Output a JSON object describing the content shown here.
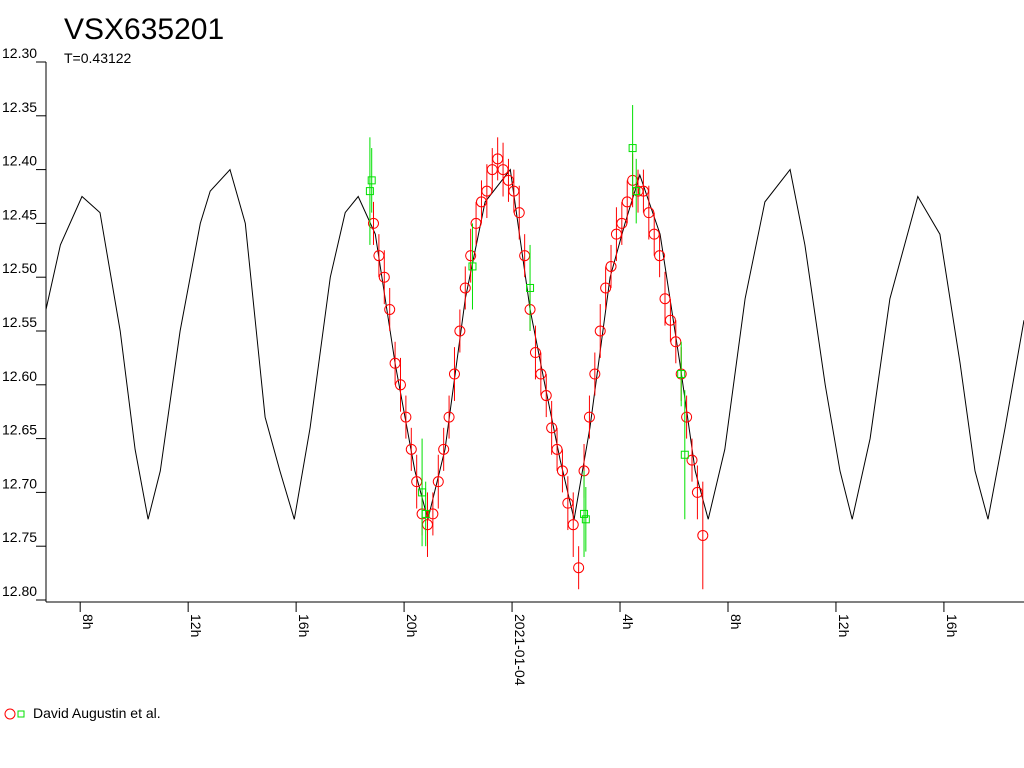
{
  "chart_data": {
    "type": "scatter",
    "title": "VSX635201",
    "subtitle": "T=0.43122",
    "xlim": [
      "2021-01-03 06:44",
      "2021-01-04 18:58"
    ],
    "xticks": [
      {
        "value": "2021-01-03 08:00",
        "label": "8h"
      },
      {
        "value": "2021-01-03 12:00",
        "label": "12h"
      },
      {
        "value": "2021-01-03 16:00",
        "label": "16h"
      },
      {
        "value": "2021-01-03 20:00",
        "label": "20h"
      },
      {
        "value": "2021-01-04 00:00",
        "label": "2021-01-04"
      },
      {
        "value": "2021-01-04 04:00",
        "label": "4h"
      },
      {
        "value": "2021-01-04 08:00",
        "label": "8h"
      },
      {
        "value": "2021-01-04 12:00",
        "label": "12h"
      },
      {
        "value": "2021-01-04 16:00",
        "label": "16h"
      }
    ],
    "ylim": [
      12.3,
      12.8
    ],
    "y_inverted": true,
    "yticks": [
      {
        "value": 12.3,
        "label": "12.30"
      },
      {
        "value": 12.35,
        "label": "12.35"
      },
      {
        "value": 12.4,
        "label": "12.40"
      },
      {
        "value": 12.45,
        "label": "12.45"
      },
      {
        "value": 12.5,
        "label": "12.50"
      },
      {
        "value": 12.55,
        "label": "12.55"
      },
      {
        "value": 12.6,
        "label": "12.60"
      },
      {
        "value": 12.65,
        "label": "12.65"
      },
      {
        "value": 12.7,
        "label": "12.70"
      },
      {
        "value": 12.75,
        "label": "12.75"
      },
      {
        "value": 12.8,
        "label": "12.80"
      }
    ],
    "series": [
      {
        "marker": "line",
        "color": "#000000",
        "x": [
          "2021-01-03 06:44",
          "2021-01-03 07:16",
          "2021-01-03 08:04",
          "2021-01-03 08:44",
          "2021-01-03 09:29",
          "2021-01-03 10:02",
          "2021-01-03 10:31",
          "2021-01-03 10:58",
          "2021-01-03 11:42",
          "2021-01-03 12:27",
          "2021-01-03 12:49",
          "2021-01-03 13:33",
          "2021-01-03 14:07",
          "2021-01-03 14:51",
          "2021-01-03 15:24",
          "2021-01-03 15:56",
          "2021-01-03 16:31",
          "2021-01-03 17:16",
          "2021-01-03 17:49",
          "2021-01-03 18:18",
          "2021-01-03 18:56",
          "2021-01-03 19:40",
          "2021-01-03 20:24",
          "2021-01-03 20:53",
          "2021-01-03 21:31",
          "2021-01-03 22:16",
          "2021-01-03 23:00",
          "2021-01-03 23:56",
          "2021-01-04 00:40",
          "2021-01-04 01:13",
          "2021-01-04 01:47",
          "2021-01-04 02:18",
          "2021-01-04 02:53",
          "2021-01-04 03:38",
          "2021-01-04 04:11",
          "2021-01-04 04:44",
          "2021-01-04 05:29",
          "2021-01-04 06:13",
          "2021-01-04 06:47",
          "2021-01-04 07:16",
          "2021-01-04 07:53",
          "2021-01-04 08:38",
          "2021-01-04 09:22",
          "2021-01-04 10:18",
          "2021-01-04 10:51",
          "2021-01-04 11:36",
          "2021-01-04 12:09",
          "2021-01-04 12:36",
          "2021-01-04 13:16",
          "2021-01-04 14:00",
          "2021-01-04 15:02",
          "2021-01-04 15:51",
          "2021-01-04 16:36",
          "2021-01-04 17:09",
          "2021-01-04 17:38",
          "2021-01-04 18:16",
          "2021-01-04 18:58"
        ],
        "values": [
          12.53,
          12.47,
          12.425,
          12.44,
          12.55,
          12.66,
          12.725,
          12.68,
          12.55,
          12.45,
          12.42,
          12.4,
          12.45,
          12.63,
          12.68,
          12.725,
          12.64,
          12.5,
          12.44,
          12.425,
          12.46,
          12.58,
          12.68,
          12.725,
          12.66,
          12.52,
          12.43,
          12.4,
          12.53,
          12.6,
          12.67,
          12.725,
          12.64,
          12.5,
          12.45,
          12.405,
          12.46,
          12.58,
          12.68,
          12.725,
          12.66,
          12.52,
          12.43,
          12.4,
          12.47,
          12.6,
          12.68,
          12.725,
          12.65,
          12.52,
          12.425,
          12.46,
          12.58,
          12.68,
          12.725,
          12.64,
          12.54
        ]
      },
      {
        "name": "David Augustin et al.",
        "marker": "circle",
        "color": "#ff0000",
        "x": [
          "2021-01-03 18:52",
          "2021-01-03 19:04",
          "2021-01-03 19:16",
          "2021-01-03 19:28",
          "2021-01-03 19:40",
          "2021-01-03 19:52",
          "2021-01-03 20:04",
          "2021-01-03 20:16",
          "2021-01-03 20:28",
          "2021-01-03 20:40",
          "2021-01-03 20:52",
          "2021-01-03 21:04",
          "2021-01-03 21:16",
          "2021-01-03 21:28",
          "2021-01-03 21:40",
          "2021-01-03 21:52",
          "2021-01-03 22:04",
          "2021-01-03 22:16",
          "2021-01-03 22:28",
          "2021-01-03 22:40",
          "2021-01-03 22:52",
          "2021-01-03 23:04",
          "2021-01-03 23:16",
          "2021-01-03 23:28",
          "2021-01-03 23:40",
          "2021-01-03 23:52",
          "2021-01-04 00:04",
          "2021-01-04 00:16",
          "2021-01-04 00:28",
          "2021-01-04 00:40",
          "2021-01-04 00:52",
          "2021-01-04 01:04",
          "2021-01-04 01:16",
          "2021-01-04 01:28",
          "2021-01-04 01:40",
          "2021-01-04 01:52",
          "2021-01-04 02:04",
          "2021-01-04 02:16",
          "2021-01-04 02:28",
          "2021-01-04 02:40",
          "2021-01-04 02:52",
          "2021-01-04 03:04",
          "2021-01-04 03:16",
          "2021-01-04 03:28",
          "2021-01-04 03:40",
          "2021-01-04 03:52",
          "2021-01-04 04:04",
          "2021-01-04 04:16",
          "2021-01-04 04:28",
          "2021-01-04 04:40",
          "2021-01-04 04:52",
          "2021-01-04 05:04",
          "2021-01-04 05:16",
          "2021-01-04 05:28",
          "2021-01-04 05:40",
          "2021-01-04 05:52",
          "2021-01-04 06:04",
          "2021-01-04 06:16",
          "2021-01-04 06:28",
          "2021-01-04 06:40",
          "2021-01-04 06:52",
          "2021-01-04 07:04"
        ],
        "values": [
          12.45,
          12.48,
          12.5,
          12.53,
          12.58,
          12.6,
          12.63,
          12.66,
          12.69,
          12.72,
          12.73,
          12.72,
          12.69,
          12.66,
          12.63,
          12.59,
          12.55,
          12.51,
          12.48,
          12.45,
          12.43,
          12.42,
          12.4,
          12.39,
          12.4,
          12.41,
          12.42,
          12.44,
          12.48,
          12.53,
          12.57,
          12.59,
          12.61,
          12.64,
          12.66,
          12.68,
          12.71,
          12.73,
          12.77,
          12.68,
          12.63,
          12.59,
          12.55,
          12.51,
          12.49,
          12.46,
          12.45,
          12.43,
          12.41,
          12.42,
          12.42,
          12.44,
          12.46,
          12.48,
          12.52,
          12.54,
          12.56,
          12.59,
          12.63,
          12.67,
          12.7,
          12.74
        ],
        "errors": [
          0.02,
          0.02,
          0.025,
          0.02,
          0.02,
          0.025,
          0.02,
          0.02,
          0.025,
          0.02,
          0.03,
          0.02,
          0.025,
          0.02,
          0.02,
          0.025,
          0.02,
          0.02,
          0.025,
          0.02,
          0.02,
          0.025,
          0.02,
          0.02,
          0.025,
          0.02,
          0.02,
          0.025,
          0.02,
          0.02,
          0.025,
          0.02,
          0.02,
          0.025,
          0.02,
          0.02,
          0.025,
          0.03,
          0.02,
          0.025,
          0.02,
          0.02,
          0.025,
          0.02,
          0.02,
          0.025,
          0.02,
          0.02,
          0.025,
          0.02,
          0.02,
          0.025,
          0.02,
          0.02,
          0.025,
          0.02,
          0.02,
          0.025,
          0.02,
          0.02,
          0.025,
          0.05
        ]
      },
      {
        "marker": "square",
        "color": "#00e000",
        "x": [
          "2021-01-03 18:44",
          "2021-01-03 18:48",
          "2021-01-03 20:40",
          "2021-01-03 20:48",
          "2021-01-03 22:32",
          "2021-01-04 00:40",
          "2021-01-04 02:40",
          "2021-01-04 02:44",
          "2021-01-04 04:28",
          "2021-01-04 04:36",
          "2021-01-04 06:16",
          "2021-01-04 06:24"
        ],
        "values": [
          12.42,
          12.41,
          12.7,
          12.72,
          12.49,
          12.51,
          12.72,
          12.725,
          12.38,
          12.42,
          12.59,
          12.665
        ],
        "errors": [
          0.05,
          0.03,
          0.05,
          0.03,
          0.04,
          0.04,
          0.04,
          0.03,
          0.04,
          0.03,
          0.03,
          0.06
        ]
      }
    ]
  }
}
